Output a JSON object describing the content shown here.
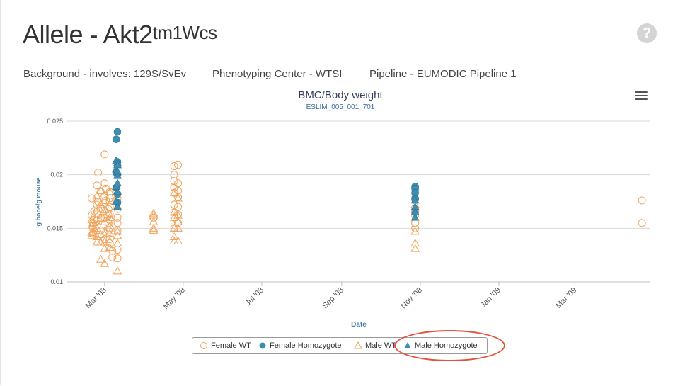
{
  "header": {
    "title_prefix": "Allele - Akt2",
    "title_sup": "tm1Wcs",
    "help_glyph": "?"
  },
  "meta": {
    "background": "Background - involves: 129S/SvEv",
    "center": "Phenotyping Center - WTSI",
    "pipeline": "Pipeline - EUMODIC Pipeline 1"
  },
  "colors": {
    "wt": "#f0a35a",
    "hom": "#3d8eb0",
    "highlight": "#e0533e"
  },
  "chart_data": {
    "type": "scatter",
    "title": "BMC/Body weight",
    "subtitle": "ESLIM_005_001_701",
    "xlabel": "Date",
    "ylabel": "g bone/g mouse",
    "ylim": [
      0.01,
      0.025
    ],
    "yticks": [
      "0.01",
      "0.015",
      "0.02",
      "0.025"
    ],
    "xlim": [
      "2008-02-01",
      "2009-04-28"
    ],
    "xticks": [
      {
        "date": "2008-03-01",
        "label": "Mar '08"
      },
      {
        "date": "2008-05-01",
        "label": "May '08"
      },
      {
        "date": "2008-07-01",
        "label": "Jul '08"
      },
      {
        "date": "2008-09-01",
        "label": "Sep '08"
      },
      {
        "date": "2008-11-01",
        "label": "Nov '08"
      },
      {
        "date": "2009-01-01",
        "label": "Jan '09"
      },
      {
        "date": "2009-03-01",
        "label": "Mar '09"
      }
    ],
    "grid": true,
    "legend_position": "bottom",
    "series": [
      {
        "name": "Female WT",
        "marker": "circle-open",
        "color": "#f0a35a",
        "points": [
          [
            "2008-02-20",
            0.0178
          ],
          [
            "2008-02-20",
            0.0162
          ],
          [
            "2008-02-21",
            0.0155
          ],
          [
            "2008-02-21",
            0.015
          ],
          [
            "2008-02-21",
            0.0145
          ],
          [
            "2008-02-22",
            0.0166
          ],
          [
            "2008-02-22",
            0.0158
          ],
          [
            "2008-02-24",
            0.019
          ],
          [
            "2008-02-24",
            0.0172
          ],
          [
            "2008-02-24",
            0.0164
          ],
          [
            "2008-02-24",
            0.0157
          ],
          [
            "2008-02-24",
            0.0152
          ],
          [
            "2008-02-25",
            0.0202
          ],
          [
            "2008-02-25",
            0.0175
          ],
          [
            "2008-02-27",
            0.0184
          ],
          [
            "2008-02-27",
            0.0168
          ],
          [
            "2008-02-27",
            0.016
          ],
          [
            "2008-02-27",
            0.0148
          ],
          [
            "2008-03-01",
            0.0219
          ],
          [
            "2008-03-01",
            0.0192
          ],
          [
            "2008-03-01",
            0.018
          ],
          [
            "2008-03-01",
            0.017
          ],
          [
            "2008-03-01",
            0.016
          ],
          [
            "2008-03-01",
            0.014
          ],
          [
            "2008-03-02",
            0.0187
          ],
          [
            "2008-03-02",
            0.0176
          ],
          [
            "2008-03-04",
            0.0168
          ],
          [
            "2008-03-04",
            0.0162
          ],
          [
            "2008-03-04",
            0.0155
          ],
          [
            "2008-03-04",
            0.0148
          ],
          [
            "2008-03-05",
            0.0184
          ],
          [
            "2008-03-05",
            0.0178
          ],
          [
            "2008-03-05",
            0.0175
          ],
          [
            "2008-03-05",
            0.017
          ],
          [
            "2008-03-05",
            0.0163
          ],
          [
            "2008-03-05",
            0.0158
          ],
          [
            "2008-03-05",
            0.015
          ],
          [
            "2008-03-05",
            0.014
          ],
          [
            "2008-03-05",
            0.0136
          ],
          [
            "2008-03-07",
            0.0129
          ],
          [
            "2008-03-07",
            0.0123
          ],
          [
            "2008-03-11",
            0.0178
          ],
          [
            "2008-03-11",
            0.0168
          ],
          [
            "2008-03-11",
            0.016
          ],
          [
            "2008-03-11",
            0.0155
          ],
          [
            "2008-03-11",
            0.0148
          ],
          [
            "2008-03-11",
            0.013
          ],
          [
            "2008-03-11",
            0.0122
          ],
          [
            "2008-04-08",
            0.016
          ],
          [
            "2008-04-24",
            0.0208
          ],
          [
            "2008-04-24",
            0.02
          ],
          [
            "2008-04-24",
            0.0194
          ],
          [
            "2008-04-24",
            0.0188
          ],
          [
            "2008-04-24",
            0.0183
          ],
          [
            "2008-04-24",
            0.0172
          ],
          [
            "2008-04-24",
            0.0165
          ],
          [
            "2008-04-24",
            0.016
          ],
          [
            "2008-04-24",
            0.015
          ],
          [
            "2008-04-27",
            0.0209
          ],
          [
            "2008-04-27",
            0.0192
          ],
          [
            "2008-04-27",
            0.0185
          ],
          [
            "2008-04-27",
            0.0179
          ],
          [
            "2008-04-27",
            0.017
          ],
          [
            "2008-04-27",
            0.0163
          ],
          [
            "2008-04-27",
            0.0155
          ],
          [
            "2008-10-28",
            0.0162
          ],
          [
            "2008-10-28",
            0.0155
          ],
          [
            "2008-10-28",
            0.015
          ],
          [
            "2009-04-22",
            0.0176
          ],
          [
            "2009-04-22",
            0.0155
          ]
        ]
      },
      {
        "name": "Female Homozygote",
        "marker": "circle-filled",
        "color": "#3d8eb0",
        "points": [
          [
            "2008-03-11",
            0.024
          ],
          [
            "2008-03-11",
            0.0212
          ],
          [
            "2008-03-11",
            0.02
          ],
          [
            "2008-03-11",
            0.0182
          ],
          [
            "2008-03-11",
            0.0174
          ],
          [
            "2008-03-10",
            0.0233
          ],
          [
            "2008-03-10",
            0.0202
          ],
          [
            "2008-03-10",
            0.0188
          ],
          [
            "2008-10-28",
            0.0189
          ],
          [
            "2008-10-28",
            0.0187
          ],
          [
            "2008-10-28",
            0.0183
          ],
          [
            "2008-10-28",
            0.0178
          ],
          [
            "2008-10-28",
            0.0177
          ],
          [
            "2008-10-28",
            0.0165
          ]
        ]
      },
      {
        "name": "Male WT",
        "marker": "triangle-open",
        "color": "#f0a35a",
        "points": [
          [
            "2008-02-20",
            0.0158
          ],
          [
            "2008-02-20",
            0.0152
          ],
          [
            "2008-02-20",
            0.0146
          ],
          [
            "2008-02-20",
            0.0143
          ],
          [
            "2008-02-21",
            0.0155
          ],
          [
            "2008-02-21",
            0.0147
          ],
          [
            "2008-02-21",
            0.0145
          ],
          [
            "2008-02-24",
            0.018
          ],
          [
            "2008-02-24",
            0.0168
          ],
          [
            "2008-02-24",
            0.015
          ],
          [
            "2008-02-24",
            0.0142
          ],
          [
            "2008-02-24",
            0.0137
          ],
          [
            "2008-02-27",
            0.0185
          ],
          [
            "2008-02-27",
            0.0172
          ],
          [
            "2008-02-27",
            0.0159
          ],
          [
            "2008-02-27",
            0.0144
          ],
          [
            "2008-02-27",
            0.0137
          ],
          [
            "2008-02-27",
            0.0121
          ],
          [
            "2008-03-01",
            0.0167
          ],
          [
            "2008-03-01",
            0.0156
          ],
          [
            "2008-03-01",
            0.0147
          ],
          [
            "2008-03-01",
            0.0137
          ],
          [
            "2008-03-01",
            0.0131
          ],
          [
            "2008-03-01",
            0.0117
          ],
          [
            "2008-03-05",
            0.0184
          ],
          [
            "2008-03-05",
            0.016
          ],
          [
            "2008-03-05",
            0.0152
          ],
          [
            "2008-03-05",
            0.0145
          ],
          [
            "2008-03-05",
            0.0138
          ],
          [
            "2008-03-05",
            0.0132
          ],
          [
            "2008-03-11",
            0.0147
          ],
          [
            "2008-03-11",
            0.0143
          ],
          [
            "2008-03-11",
            0.0136
          ],
          [
            "2008-03-11",
            0.011
          ],
          [
            "2008-04-08",
            0.0164
          ],
          [
            "2008-04-08",
            0.0162
          ],
          [
            "2008-04-08",
            0.0156
          ],
          [
            "2008-04-08",
            0.015
          ],
          [
            "2008-04-08",
            0.0148
          ],
          [
            "2008-04-24",
            0.0183
          ],
          [
            "2008-04-24",
            0.0165
          ],
          [
            "2008-04-24",
            0.016
          ],
          [
            "2008-04-24",
            0.015
          ],
          [
            "2008-04-24",
            0.0142
          ],
          [
            "2008-04-24",
            0.0138
          ],
          [
            "2008-04-27",
            0.0178
          ],
          [
            "2008-04-27",
            0.0162
          ],
          [
            "2008-04-27",
            0.0156
          ],
          [
            "2008-04-27",
            0.015
          ],
          [
            "2008-04-27",
            0.0138
          ],
          [
            "2008-10-28",
            0.0172
          ],
          [
            "2008-10-28",
            0.0168
          ],
          [
            "2008-10-28",
            0.0147
          ],
          [
            "2008-10-28",
            0.0136
          ],
          [
            "2008-10-28",
            0.0131
          ]
        ]
      },
      {
        "name": "Male Homozygote",
        "marker": "triangle-filled",
        "color": "#3d8eb0",
        "points": [
          [
            "2008-03-10",
            0.0213
          ],
          [
            "2008-03-10",
            0.0205
          ],
          [
            "2008-03-10",
            0.0189
          ],
          [
            "2008-03-10",
            0.0175
          ],
          [
            "2008-03-11",
            0.0211
          ],
          [
            "2008-03-11",
            0.0209
          ],
          [
            "2008-03-11",
            0.0203
          ],
          [
            "2008-03-11",
            0.0199
          ],
          [
            "2008-03-11",
            0.0192
          ],
          [
            "2008-03-11",
            0.0184
          ],
          [
            "2008-03-11",
            0.017
          ],
          [
            "2008-10-28",
            0.0176
          ],
          [
            "2008-10-28",
            0.017
          ],
          [
            "2008-10-28",
            0.0165
          ],
          [
            "2008-10-28",
            0.016
          ]
        ]
      }
    ]
  }
}
